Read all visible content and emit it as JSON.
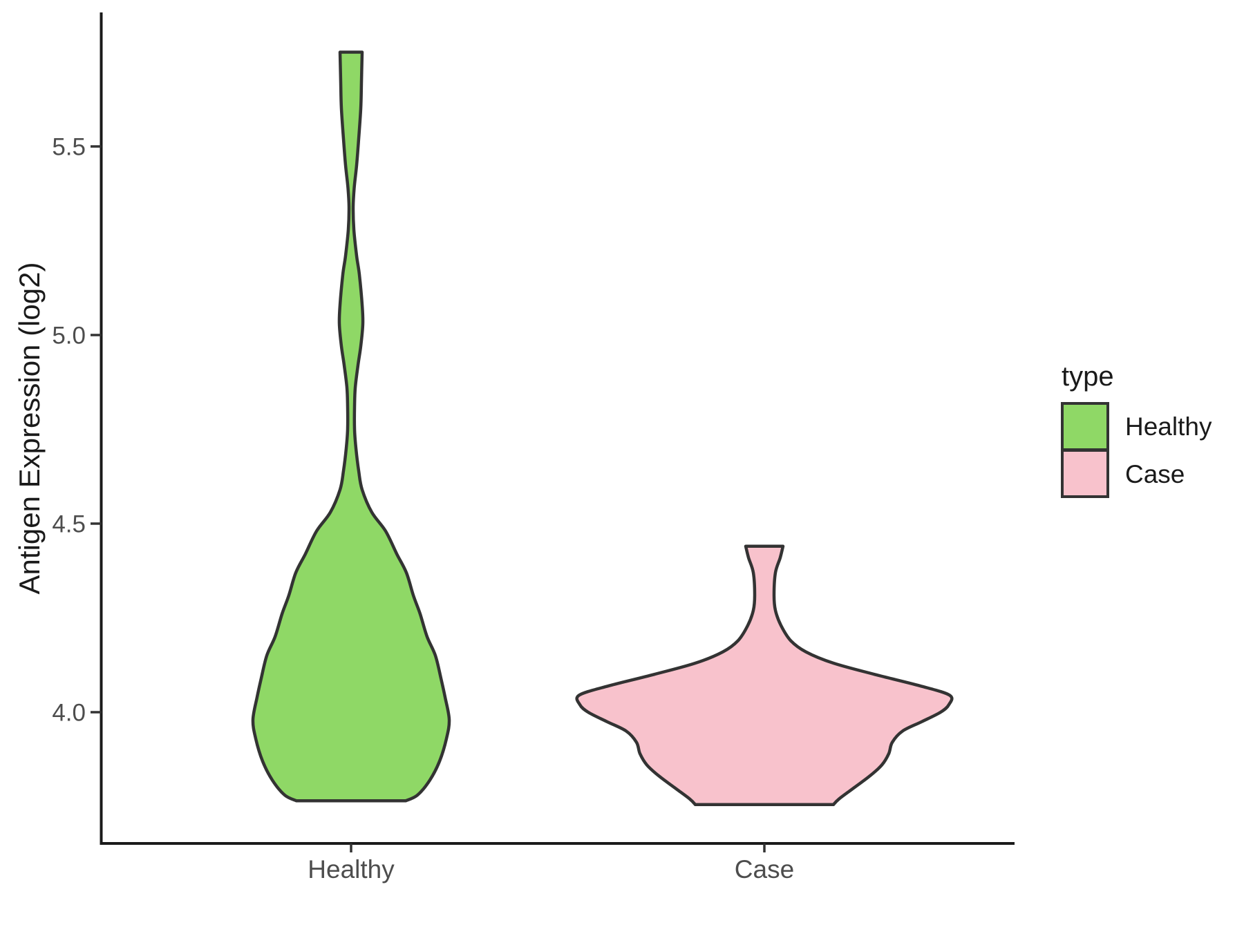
{
  "chart_data": {
    "type": "violin",
    "title": "",
    "xlabel": "",
    "ylabel": "Antigen Expression (log2)",
    "categories": [
      "Healthy",
      "Case"
    ],
    "y_axis": {
      "tick_values": [
        5.5,
        5.0,
        4.5,
        4.0
      ],
      "tick_labels": [
        "5.5",
        "5.0",
        "4.5",
        "4.0"
      ],
      "range": [
        3.65,
        5.86
      ],
      "grid": false
    },
    "legend": {
      "title": "type",
      "position": "right",
      "entries": [
        {
          "label": "Healthy",
          "color": "#8FD866"
        },
        {
          "label": "Case",
          "color": "#F8C2CC"
        }
      ]
    },
    "outline_color": "#333333",
    "axis_color": "#1a1a1a",
    "tick_color": "#333333",
    "tick_text_color": "#4d4d4d",
    "series": [
      {
        "name": "Healthy",
        "fill": "#8FD866",
        "value_min": 3.765,
        "value_max": 5.75,
        "profile": [
          [
            5.75,
            16
          ],
          [
            5.67,
            15
          ],
          [
            5.6,
            14
          ],
          [
            5.52,
            11
          ],
          [
            5.45,
            8
          ],
          [
            5.39,
            4.5
          ],
          [
            5.34,
            3
          ],
          [
            5.28,
            4
          ],
          [
            5.21,
            8
          ],
          [
            5.16,
            12
          ],
          [
            5.08,
            16
          ],
          [
            5.03,
            17
          ],
          [
            4.97,
            14
          ],
          [
            4.92,
            10
          ],
          [
            4.86,
            6
          ],
          [
            4.81,
            5
          ],
          [
            4.75,
            5
          ],
          [
            4.7,
            7
          ],
          [
            4.64,
            11
          ],
          [
            4.59,
            16
          ],
          [
            4.53,
            30
          ],
          [
            4.48,
            50
          ],
          [
            4.42,
            66
          ],
          [
            4.37,
            80
          ],
          [
            4.31,
            90
          ],
          [
            4.26,
            100
          ],
          [
            4.2,
            110
          ],
          [
            4.15,
            122
          ],
          [
            4.09,
            130
          ],
          [
            4.04,
            136
          ],
          [
            3.98,
            142
          ],
          [
            3.93,
            138
          ],
          [
            3.87,
            128
          ],
          [
            3.82,
            114
          ],
          [
            3.78,
            96
          ],
          [
            3.765,
            79
          ]
        ]
      },
      {
        "name": "Case",
        "fill": "#F8C2CC",
        "value_min": 3.755,
        "value_max": 4.44,
        "profile": [
          [
            4.44,
            27
          ],
          [
            4.41,
            23
          ],
          [
            4.37,
            16
          ],
          [
            4.31,
            14
          ],
          [
            4.27,
            16
          ],
          [
            4.23,
            24
          ],
          [
            4.19,
            38
          ],
          [
            4.16,
            60
          ],
          [
            4.13,
            100
          ],
          [
            4.1,
            160
          ],
          [
            4.07,
            225
          ],
          [
            4.045,
            268
          ],
          [
            4.02,
            267
          ],
          [
            4.0,
            255
          ],
          [
            3.975,
            228
          ],
          [
            3.95,
            200
          ],
          [
            3.92,
            185
          ],
          [
            3.89,
            180
          ],
          [
            3.86,
            170
          ],
          [
            3.83,
            152
          ],
          [
            3.8,
            130
          ],
          [
            3.77,
            108
          ],
          [
            3.755,
            100
          ]
        ]
      }
    ]
  }
}
